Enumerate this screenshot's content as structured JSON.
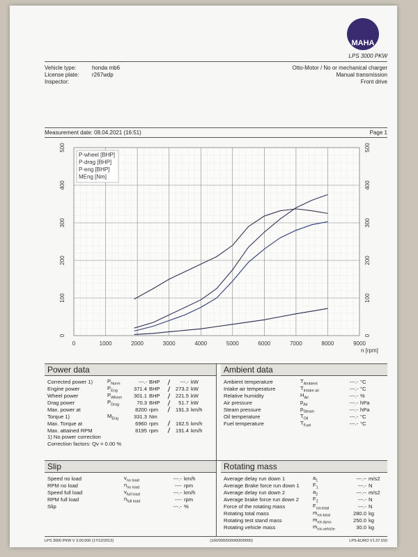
{
  "header": {
    "logo": "MAHA",
    "product": "LPS 3000 PKW"
  },
  "vehicle": {
    "fields": [
      {
        "label": "Vehicle type:",
        "value": "honda mb6"
      },
      {
        "label": "License plate:",
        "value": "r267wdp"
      },
      {
        "label": "Inspector:"
      }
    ],
    "info": [
      "Otto-Motor / No or mechanical charger",
      "Manual transmission",
      "Front drive"
    ]
  },
  "measurement": {
    "date": "Measurement date: 08.04.2021 (16:51)",
    "page": "Page 1"
  },
  "chart_data": {
    "type": "line",
    "x": [
      1900,
      2500,
      3000,
      3500,
      4000,
      4500,
      5000,
      5500,
      6000,
      6500,
      7000,
      7500,
      8000
    ],
    "series": [
      {
        "name": "P-wheel [BHP]",
        "color": "#2c3a7a",
        "values": [
          12,
          25,
          40,
          55,
          75,
          100,
          145,
          195,
          230,
          260,
          280,
          295,
          303
        ]
      },
      {
        "name": "P-drag [BHP]",
        "color": "#25284a",
        "values": [
          3,
          6,
          10,
          14,
          18,
          24,
          30,
          36,
          42,
          50,
          58,
          65,
          72
        ]
      },
      {
        "name": "P-eng [BHP]",
        "color": "#30305a",
        "values": [
          20,
          35,
          55,
          75,
          95,
          125,
          175,
          235,
          275,
          310,
          340,
          360,
          375
        ]
      },
      {
        "name": "MEng [Nm]",
        "color": "#3b2b4e",
        "values": [
          97,
          125,
          150,
          170,
          190,
          210,
          240,
          290,
          318,
          332,
          337,
          332,
          325
        ]
      }
    ],
    "xlabel": "n [rpm]",
    "xlim": [
      0,
      9000
    ],
    "xticks": [
      0,
      1000,
      2000,
      3000,
      4000,
      5000,
      6000,
      7000,
      8000,
      9000
    ],
    "ylim": [
      0,
      500
    ],
    "yticks": [
      0,
      100,
      200,
      300,
      400,
      500
    ],
    "y2lim": [
      0,
      500
    ],
    "y2ticks": [
      0,
      100,
      200,
      300,
      400,
      500
    ],
    "grid": true
  },
  "sections": {
    "power": {
      "title": "Power data",
      "rows": [
        {
          "label": "Corrected power 1)",
          "symbol": "P",
          "symbol_sub": "Norm",
          "v1": "---.-",
          "u1": "BHP",
          "v2": "---.-",
          "u2": "kW"
        },
        {
          "label": "Engine power",
          "symbol": "P",
          "symbol_sub": "Eng",
          "v1": "371.4",
          "u1": "BHP",
          "v2": "273.2",
          "u2": "kW"
        },
        {
          "label": "Wheel power",
          "symbol": "P",
          "symbol_sub": "Wheel",
          "v1": "301.1",
          "u1": "BHP",
          "v2": "221.5",
          "u2": "kW"
        },
        {
          "label": "Drag power",
          "symbol": "P",
          "symbol_sub": "Drag",
          "v1": "70.3",
          "u1": "BHP",
          "v2": "51.7",
          "u2": "kW"
        },
        {
          "label": "Max. power at",
          "v1": "8200",
          "u1": "rpm",
          "v2": "191.3",
          "u2": "km/h"
        },
        {
          "label": "Torque 1)",
          "symbol": "M",
          "symbol_sub": "Eng",
          "v1": "331.3",
          "u1": "Nm"
        },
        {
          "label": "Max. Torque at",
          "v1": "6960",
          "u1": "rpm",
          "v2": "162.5",
          "u2": "km/h"
        },
        {
          "label": "Max. attained RPM",
          "v1": "8195",
          "u1": "rpm",
          "v2": "191.4",
          "u2": "km/h"
        }
      ],
      "notes": [
        "1) No power correction",
        "Correction factors: Qv = 0.00 %"
      ]
    },
    "ambient": {
      "title": "Ambient data",
      "rows": [
        {
          "label": "Ambient temperature",
          "symbol": "T",
          "symbol_sub": "Ambient",
          "v1": "---.-",
          "u1": "°C"
        },
        {
          "label": "Intake air temperature",
          "symbol": "T",
          "symbol_sub": "Intake air",
          "v1": "---.-",
          "u1": "°C"
        },
        {
          "label": "Relative humidity",
          "symbol": "H",
          "symbol_sub": "Air",
          "v1": "---.-",
          "u1": "%"
        },
        {
          "label": "Air pressure",
          "symbol": "p",
          "symbol_sub": "Air",
          "v1": "---.-",
          "u1": "hPa"
        },
        {
          "label": "Steam pressure",
          "symbol": "p",
          "symbol_sub": "Steam",
          "v1": "---.-",
          "u1": "hPa"
        },
        {
          "label": "Oil temperature",
          "symbol": "T",
          "symbol_sub": "Oil",
          "v1": "---.-",
          "u1": "°C"
        },
        {
          "label": "Fuel temperature",
          "symbol": "T",
          "symbol_sub": "Fuel",
          "v1": "---.-",
          "u1": "°C"
        }
      ]
    },
    "slip": {
      "title": "Slip",
      "rows": [
        {
          "label": "Speed no load",
          "symbol": "v",
          "symbol_sub": "no load",
          "v1": "---.-",
          "u1": "km/h"
        },
        {
          "label": "RPM no load",
          "symbol": "n",
          "symbol_sub": "no load",
          "v1": "----",
          "u1": "rpm"
        },
        {
          "label": "Speed full load",
          "symbol": "v",
          "symbol_sub": "full load",
          "v1": "---.-",
          "u1": "km/h"
        },
        {
          "label": "RPM full load",
          "symbol": "n",
          "symbol_sub": "full load",
          "v1": "----",
          "u1": "rpm"
        },
        {
          "label": "Slip",
          "v1": "---.-",
          "u1": "%"
        }
      ]
    },
    "rotating": {
      "title": "Rotating mass",
      "rows": [
        {
          "label": "Average delay run down 1",
          "symbol": "a",
          "symbol_sub": "1",
          "v1": "---.--",
          "u1": "m/s2"
        },
        {
          "label": "Average Brake force run down 1",
          "symbol": "F",
          "symbol_sub": "1",
          "v1": "---.-",
          "u1": "N"
        },
        {
          "label": "Average delay run down 2",
          "symbol": "a",
          "symbol_sub": "2",
          "v1": "---.--",
          "u1": "m/s2"
        },
        {
          "label": "Average brake force run down 2",
          "symbol": "F",
          "symbol_sub": "2",
          "v1": "---.-",
          "u1": "N"
        },
        {
          "label": "Force of the rotating mass",
          "symbol": "F",
          "symbol_sub": "rot-total",
          "v1": "---.-",
          "u1": "N"
        },
        {
          "label": "Rotating total mass",
          "symbol": "m",
          "symbol_sub": "rot-total",
          "v1": "280.0",
          "u1": "kg"
        },
        {
          "label": "Rotating test stand mass",
          "symbol": "m",
          "symbol_sub": "rot-dyno",
          "v1": "250.0",
          "u1": "kg"
        },
        {
          "label": "Rotating vehicle mass",
          "symbol": "m",
          "symbol_sub": "rot-vehicle",
          "v1": "30.0",
          "u1": "kg"
        }
      ]
    }
  },
  "footer": [
    "LPS 3000 PKW V 3.00.000 (17/12/2013)",
    "(100/000/0000/000/0000)",
    "LPS-EURO V1.37.010"
  ]
}
